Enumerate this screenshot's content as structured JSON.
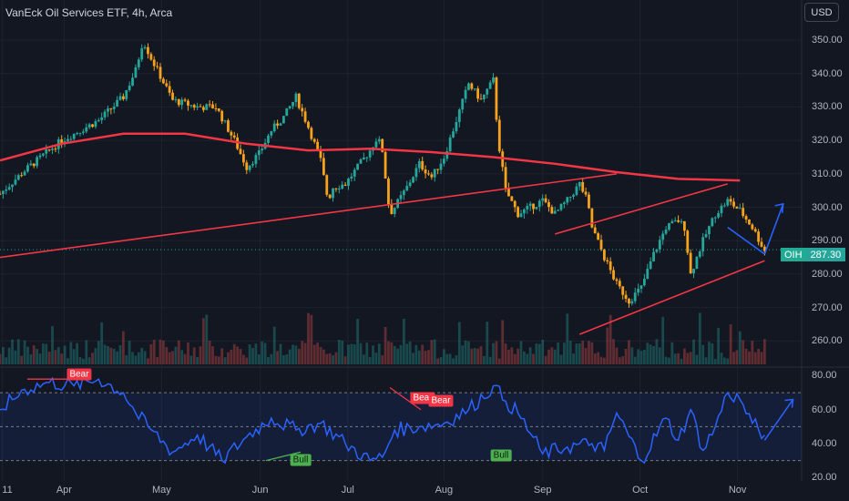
{
  "header": {
    "title": "VanEck Oil Services ETF, 4h, Arca",
    "currency_button": "USD"
  },
  "price_tag": {
    "symbol": "OIH",
    "value": "287.30"
  },
  "rsi_labels": [
    {
      "text": "Bear",
      "kind": "bear"
    },
    {
      "text": "Bear",
      "kind": "bear"
    },
    {
      "text": "Bear",
      "kind": "bear"
    },
    {
      "text": "Bull",
      "kind": "bull"
    },
    {
      "text": "Bull",
      "kind": "bull"
    }
  ],
  "colors": {
    "background": "#131722",
    "up": "#26a69a",
    "down": "#f7a21b",
    "ma": "#f23645",
    "trendline": "#f23645",
    "rsi": "#2962ff",
    "rsi_band": "#2962ff",
    "projection": "#2962ff"
  },
  "chart_data": [
    {
      "type": "candlestick",
      "title": "VanEck Oil Services ETF, 4h, Arca",
      "y_ticks": [
        "350.00",
        "340.00",
        "330.00",
        "320.00",
        "310.00",
        "300.00",
        "290.00",
        "280.00",
        "270.00",
        "260.00"
      ],
      "ylim": [
        253,
        362
      ],
      "x_ticks": [
        "11",
        "Apr",
        "May",
        "Jun",
        "Jul",
        "Aug",
        "Sep",
        "Oct",
        "Nov"
      ],
      "close_path": [
        [
          0,
          304
        ],
        [
          2,
          311
        ],
        [
          5,
          320
        ],
        [
          8,
          326
        ],
        [
          10,
          333
        ],
        [
          11,
          341
        ],
        [
          11.6,
          350
        ],
        [
          12.2,
          345
        ],
        [
          14,
          332
        ],
        [
          16,
          330
        ],
        [
          17.5,
          330
        ],
        [
          19,
          320
        ],
        [
          20,
          312
        ],
        [
          21,
          316
        ],
        [
          22,
          323
        ],
        [
          23,
          327
        ],
        [
          24,
          333
        ],
        [
          25,
          324
        ],
        [
          26,
          314
        ],
        [
          26.6,
          302
        ],
        [
          27,
          306
        ],
        [
          28,
          307
        ],
        [
          29,
          312
        ],
        [
          30,
          317
        ],
        [
          30.6,
          321
        ],
        [
          31,
          317
        ],
        [
          31.6,
          298
        ],
        [
          32,
          300
        ],
        [
          33,
          306
        ],
        [
          34,
          313
        ],
        [
          35,
          309
        ],
        [
          36,
          315
        ],
        [
          37,
          326
        ],
        [
          38,
          337
        ],
        [
          39,
          332
        ],
        [
          40,
          338
        ],
        [
          40.4,
          320
        ],
        [
          41,
          305
        ],
        [
          42,
          298
        ],
        [
          43,
          300
        ],
        [
          44,
          302
        ],
        [
          45,
          298
        ],
        [
          46,
          302
        ],
        [
          47,
          307
        ],
        [
          47.6,
          302
        ],
        [
          48,
          294
        ],
        [
          49,
          285
        ],
        [
          50,
          277
        ],
        [
          51,
          272
        ],
        [
          52,
          276
        ],
        [
          53,
          286
        ],
        [
          54,
          294
        ],
        [
          55,
          296
        ],
        [
          55.5,
          294
        ],
        [
          56,
          280
        ],
        [
          57,
          290
        ],
        [
          58,
          298
        ],
        [
          59,
          302
        ],
        [
          60,
          299
        ],
        [
          61,
          294
        ],
        [
          62,
          287
        ]
      ],
      "volume": "not labeled",
      "series": [
        {
          "name": "",
          "description": "long moving average",
          "points": [
            [
              0,
              314
            ],
            [
              5,
              319
            ],
            [
              10,
              322
            ],
            [
              15,
              322
            ],
            [
              20,
              319
            ],
            [
              25,
              317
            ],
            [
              30,
              317.5
            ],
            [
              35,
              316.5
            ],
            [
              40,
              315
            ],
            [
              45,
              313
            ],
            [
              50,
              310.5
            ],
            [
              55,
              308.5
            ],
            [
              60,
              308
            ]
          ]
        }
      ],
      "annotations": [
        {
          "kind": "trendline",
          "from": [
            0,
            285
          ],
          "to": [
            50,
            310
          ]
        },
        {
          "kind": "trendline",
          "from": [
            45,
            292
          ],
          "to": [
            59,
            307
          ]
        },
        {
          "kind": "trendline",
          "from": [
            47,
            262
          ],
          "to": [
            62,
            284
          ]
        },
        {
          "kind": "projection",
          "from": [
            59,
            294
          ],
          "to": [
            62,
            286
          ]
        },
        {
          "kind": "projection",
          "from": [
            62,
            286
          ],
          "to": [
            63.5,
            301
          ]
        }
      ]
    },
    {
      "type": "line",
      "title": "",
      "y_ticks": [
        "80.00",
        "60.00",
        "40.00",
        "20.00"
      ],
      "ylim": [
        18,
        84
      ],
      "band": [
        30,
        70
      ],
      "x": [
        0,
        2,
        4,
        6,
        8,
        10,
        11,
        12,
        14,
        16,
        18,
        20,
        22,
        24,
        26,
        28,
        30,
        31,
        32,
        34,
        36,
        38,
        40,
        41,
        42,
        44,
        46,
        48,
        49,
        50,
        52,
        54,
        55,
        56,
        57,
        58,
        59,
        60,
        61,
        62,
        64
      ],
      "values": [
        60,
        72,
        76,
        74,
        78,
        70,
        58,
        50,
        35,
        45,
        30,
        44,
        55,
        48,
        52,
        40,
        30,
        32,
        48,
        50,
        52,
        60,
        74,
        65,
        58,
        34,
        38,
        40,
        36,
        58,
        30,
        55,
        42,
        60,
        36,
        50,
        70,
        66,
        52,
        45,
        68
      ],
      "series": [
        {
          "name": "",
          "values": "see values"
        }
      ]
    }
  ]
}
